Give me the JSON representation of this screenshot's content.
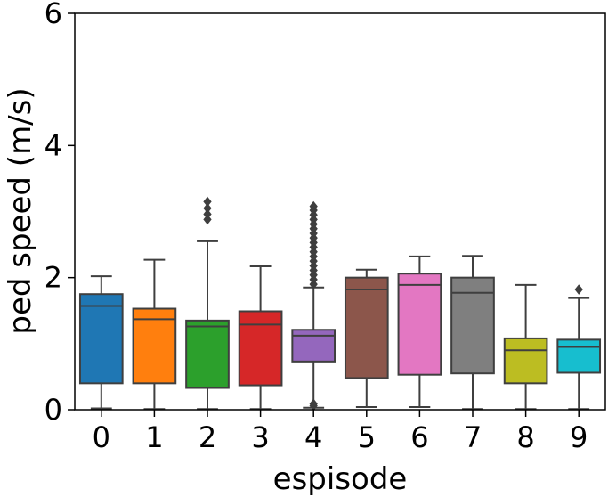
{
  "chart_data": {
    "type": "box",
    "title": "",
    "xlabel": "espisode",
    "ylabel": "ped speed (m/s)",
    "ylim": [
      0,
      6
    ],
    "yticks": [
      0,
      2,
      4,
      6
    ],
    "grid": false,
    "categories": [
      "0",
      "1",
      "2",
      "3",
      "4",
      "5",
      "6",
      "7",
      "8",
      "9"
    ],
    "boxes": [
      {
        "category": "0",
        "color": "#1f77b4",
        "whisker_low": 0.02,
        "q1": 0.4,
        "median": 1.57,
        "q3": 1.75,
        "whisker_high": 2.02,
        "outliers": []
      },
      {
        "category": "1",
        "color": "#ff7f0e",
        "whisker_low": 0.01,
        "q1": 0.4,
        "median": 1.37,
        "q3": 1.53,
        "whisker_high": 2.27,
        "outliers": []
      },
      {
        "category": "2",
        "color": "#2ca02c",
        "whisker_low": 0.01,
        "q1": 0.33,
        "median": 1.26,
        "q3": 1.35,
        "whisker_high": 2.55,
        "outliers": [
          2.88,
          2.96,
          3.05,
          3.15
        ]
      },
      {
        "category": "3",
        "color": "#d62728",
        "whisker_low": 0.01,
        "q1": 0.37,
        "median": 1.29,
        "q3": 1.49,
        "whisker_high": 2.17,
        "outliers": []
      },
      {
        "category": "4",
        "color": "#9467bd",
        "whisker_low": 0.03,
        "q1": 0.73,
        "median": 1.12,
        "q3": 1.21,
        "whisker_high": 1.85,
        "outliers": [
          0.06,
          0.09,
          1.9,
          1.97,
          2.04,
          2.11,
          2.18,
          2.25,
          2.32,
          2.39,
          2.46,
          2.53,
          2.6,
          2.67,
          2.74,
          2.81,
          2.88,
          2.95,
          3.02,
          3.08
        ]
      },
      {
        "category": "5",
        "color": "#8c564b",
        "whisker_low": 0.04,
        "q1": 0.48,
        "median": 1.82,
        "q3": 2.0,
        "whisker_high": 2.12,
        "outliers": []
      },
      {
        "category": "6",
        "color": "#e377c2",
        "whisker_low": 0.04,
        "q1": 0.53,
        "median": 1.89,
        "q3": 2.06,
        "whisker_high": 2.32,
        "outliers": []
      },
      {
        "category": "7",
        "color": "#7f7f7f",
        "whisker_low": 0.01,
        "q1": 0.55,
        "median": 1.77,
        "q3": 2.0,
        "whisker_high": 2.33,
        "outliers": []
      },
      {
        "category": "8",
        "color": "#bcbd22",
        "whisker_low": 0.01,
        "q1": 0.4,
        "median": 0.9,
        "q3": 1.08,
        "whisker_high": 1.89,
        "outliers": []
      },
      {
        "category": "9",
        "color": "#17becf",
        "whisker_low": 0.01,
        "q1": 0.56,
        "median": 0.95,
        "q3": 1.06,
        "whisker_high": 1.69,
        "outliers": [
          1.82
        ]
      }
    ]
  }
}
